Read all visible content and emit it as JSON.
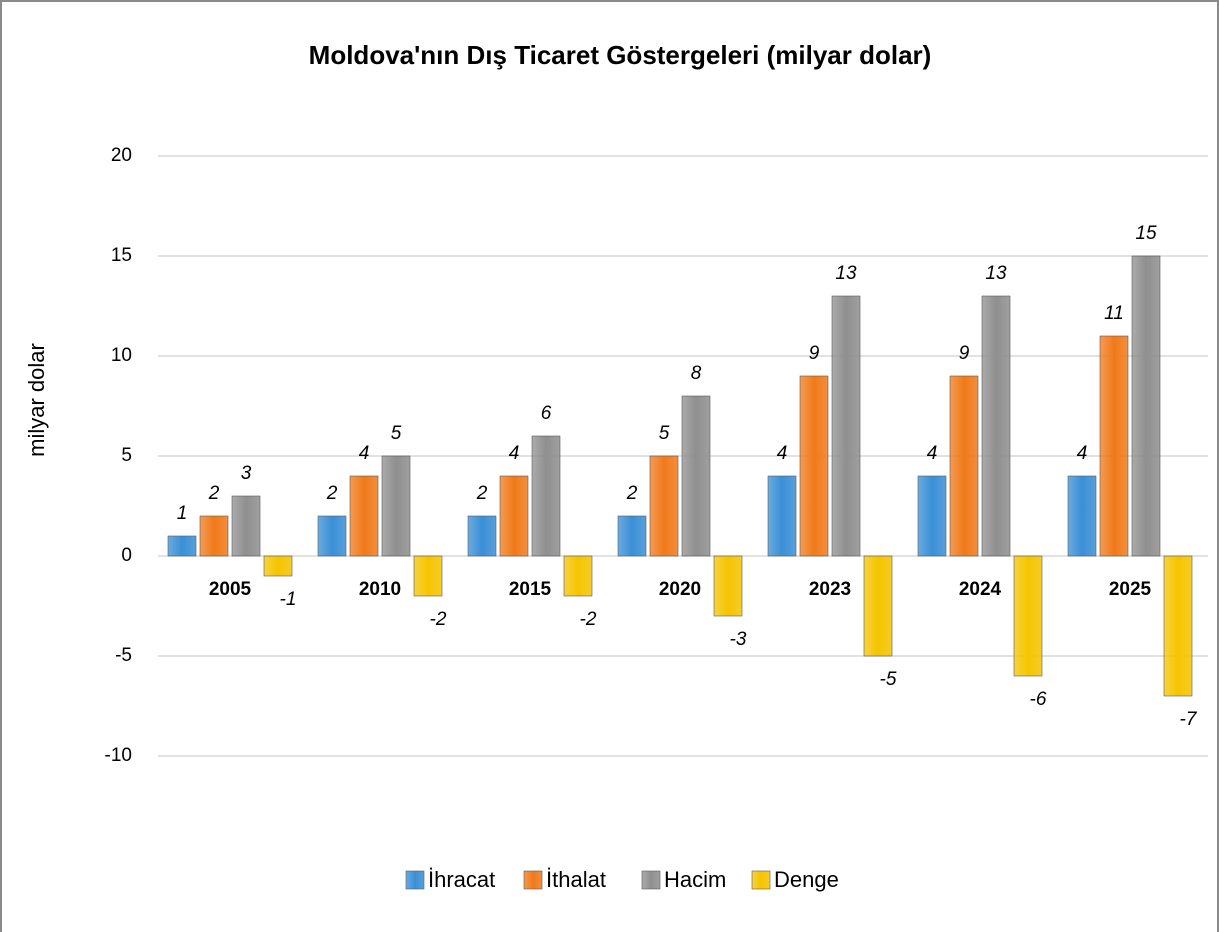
{
  "chart_data": {
    "type": "bar",
    "title": "Moldova'nın Dış Ticaret Göstergeleri (milyar dolar)",
    "y_label": "milyar dolar",
    "categories": [
      "2005",
      "2010",
      "2015",
      "2020",
      "2023",
      "2024",
      "2025"
    ],
    "series": [
      {
        "name": "İhracat",
        "color": "#3a8fd6",
        "values": [
          1,
          2,
          2,
          2,
          4,
          4,
          4
        ]
      },
      {
        "name": "İthalat",
        "color": "#f07a1a",
        "values": [
          2,
          4,
          4,
          5,
          9,
          9,
          11
        ]
      },
      {
        "name": "Hacim",
        "color": "#8f8f8f",
        "values": [
          3,
          5,
          6,
          8,
          13,
          13,
          15
        ]
      },
      {
        "name": "Denge",
        "color": "#f5c400",
        "values": [
          -1,
          -2,
          -2,
          -3,
          -5,
          -6,
          -7
        ]
      }
    ],
    "ylim": [
      -10,
      20
    ],
    "yticks": [
      -10,
      -5,
      0,
      5,
      10,
      15,
      20
    ],
    "grid": true,
    "legend": "bottom"
  }
}
